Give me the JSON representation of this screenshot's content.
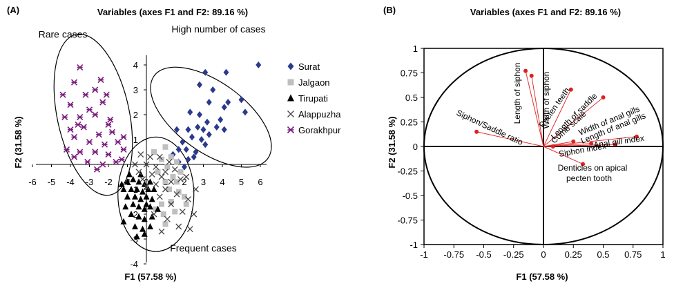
{
  "chart_data": [
    {
      "panel_label": "(A)",
      "type": "scatter",
      "title": "Variables (axes F1 and F2: 89.16 %)",
      "xlabel": "F1 (57.58 %)",
      "ylabel": "F2 (31.58 %)",
      "xlim": [
        -6,
        6
      ],
      "ylim": [
        -4,
        4
      ],
      "xticks": [
        -6,
        -5,
        -4,
        -3,
        -2,
        -1,
        0,
        1,
        2,
        3,
        4,
        5,
        6
      ],
      "yticks": [
        -4,
        -3,
        -2,
        -1,
        1,
        2,
        3,
        4
      ],
      "xtick_labels": [
        "-6",
        "-5",
        "-4",
        "-3",
        "-2",
        "-1",
        "0",
        "1",
        "2",
        "3",
        "4",
        "5",
        "6"
      ],
      "ytick_labels": [
        "-4",
        "-3",
        "-2",
        "-1",
        "1",
        "2",
        "3",
        "4"
      ],
      "legend_position": "right",
      "series": [
        {
          "name": "Surat",
          "marker": "diamond",
          "color": "#2a3a8c",
          "points": [
            [
              5.9,
              4.0
            ],
            [
              4.2,
              3.7
            ],
            [
              3.1,
              3.7
            ],
            [
              5.0,
              2.6
            ],
            [
              3.5,
              3.0
            ],
            [
              4.3,
              2.5
            ],
            [
              2.8,
              3.2
            ],
            [
              3.3,
              2.5
            ],
            [
              5.2,
              2.1
            ],
            [
              4.1,
              2.3
            ],
            [
              2.3,
              2.1
            ],
            [
              2.8,
              2.0
            ],
            [
              3.9,
              1.8
            ],
            [
              3.7,
              1.5
            ],
            [
              3.2,
              1.7
            ],
            [
              2.7,
              1.5
            ],
            [
              2.2,
              1.4
            ],
            [
              1.6,
              1.4
            ],
            [
              3.0,
              1.4
            ],
            [
              3.3,
              1.2
            ],
            [
              4.1,
              1.4
            ],
            [
              2.4,
              1.1
            ],
            [
              2.9,
              1.0
            ],
            [
              1.9,
              0.9
            ],
            [
              3.1,
              0.8
            ],
            [
              2.1,
              0.6
            ],
            [
              2.6,
              0.5
            ],
            [
              1.7,
              0.6
            ],
            [
              2.5,
              0.3
            ],
            [
              1.4,
              0.4
            ],
            [
              1.7,
              0.1
            ],
            [
              2.2,
              0.2
            ],
            [
              2.0,
              -0.1
            ]
          ]
        },
        {
          "name": "Jalgaon",
          "marker": "square",
          "color": "#bfbfbf",
          "points": [
            [
              1.0,
              0.7
            ],
            [
              1.3,
              0.3
            ],
            [
              1.6,
              0.1
            ],
            [
              0.8,
              0.2
            ],
            [
              0.4,
              0.5
            ],
            [
              1.1,
              -0.1
            ],
            [
              1.8,
              -0.3
            ],
            [
              1.4,
              -0.5
            ],
            [
              1.0,
              -0.7
            ],
            [
              0.6,
              -0.3
            ],
            [
              1.2,
              -1.0
            ],
            [
              1.7,
              -1.1
            ],
            [
              2.0,
              -1.3
            ],
            [
              1.3,
              -1.5
            ],
            [
              0.8,
              -1.6
            ],
            [
              1.5,
              -1.9
            ],
            [
              0.9,
              -2.0
            ],
            [
              0.5,
              -1.8
            ],
            [
              2.1,
              -1.6
            ],
            [
              1.0,
              -2.4
            ],
            [
              1.6,
              -0.7
            ]
          ]
        },
        {
          "name": "Tirupati",
          "marker": "triangle",
          "color": "#000000",
          "points": [
            [
              -1.3,
              -0.8
            ],
            [
              -1.0,
              -0.7
            ],
            [
              -0.7,
              -0.6
            ],
            [
              -0.4,
              -0.7
            ],
            [
              -0.1,
              -0.8
            ],
            [
              0.2,
              -0.7
            ],
            [
              -1.2,
              -1.0
            ],
            [
              -0.8,
              -1.0
            ],
            [
              -0.5,
              -1.0
            ],
            [
              -0.2,
              -1.1
            ],
            [
              0.1,
              -1.0
            ],
            [
              0.4,
              -1.0
            ],
            [
              -1.0,
              -1.3
            ],
            [
              -0.6,
              -1.3
            ],
            [
              -0.3,
              -1.4
            ],
            [
              0.0,
              -1.3
            ],
            [
              0.3,
              -1.4
            ],
            [
              -1.1,
              -1.7
            ],
            [
              -0.7,
              -1.6
            ],
            [
              -0.4,
              -1.7
            ],
            [
              -0.1,
              -1.8
            ],
            [
              0.2,
              -1.7
            ],
            [
              -0.8,
              -2.0
            ],
            [
              -0.4,
              -2.1
            ],
            [
              -0.1,
              -2.2
            ],
            [
              0.3,
              -2.1
            ],
            [
              -1.2,
              -2.3
            ],
            [
              -0.6,
              -2.5
            ],
            [
              -0.2,
              -2.6
            ],
            [
              0.2,
              -2.5
            ],
            [
              -0.5,
              -2.9
            ],
            [
              -0.1,
              -2.8
            ],
            [
              -0.9,
              -0.4
            ],
            [
              -0.3,
              -0.4
            ],
            [
              0.0,
              -1.6
            ],
            [
              0.6,
              -1.8
            ]
          ]
        },
        {
          "name": "Alappuzha",
          "marker": "x",
          "color": "#444444",
          "points": [
            [
              -0.3,
              0.4
            ],
            [
              0.2,
              0.3
            ],
            [
              0.7,
              0.3
            ],
            [
              1.2,
              0.1
            ],
            [
              -0.6,
              0.0
            ],
            [
              0.0,
              0.0
            ],
            [
              0.5,
              -0.1
            ],
            [
              1.0,
              -0.3
            ],
            [
              1.5,
              -0.2
            ],
            [
              -0.4,
              -0.3
            ],
            [
              0.3,
              -0.4
            ],
            [
              0.8,
              -0.5
            ],
            [
              1.3,
              -0.7
            ],
            [
              1.8,
              -0.6
            ],
            [
              2.1,
              -0.5
            ],
            [
              -0.2,
              -0.6
            ],
            [
              0.5,
              -0.8
            ],
            [
              1.0,
              -1.0
            ],
            [
              1.6,
              -1.2
            ],
            [
              2.2,
              -1.4
            ],
            [
              2.6,
              -1.0
            ],
            [
              0.7,
              -1.3
            ],
            [
              1.3,
              -1.6
            ],
            [
              1.9,
              -1.9
            ],
            [
              2.5,
              -2.0
            ],
            [
              0.4,
              -2.0
            ],
            [
              1.1,
              -2.2
            ],
            [
              1.7,
              -2.5
            ],
            [
              0.8,
              -2.7
            ],
            [
              2.3,
              -2.6
            ],
            [
              0.0,
              -0.9
            ]
          ]
        },
        {
          "name": "Gorakhpur",
          "marker": "asterisk",
          "color": "#7b1f7e",
          "points": [
            [
              -3.5,
              3.9
            ],
            [
              -3.8,
              3.3
            ],
            [
              -2.4,
              3.4
            ],
            [
              -2.7,
              3.0
            ],
            [
              -4.4,
              2.8
            ],
            [
              -3.2,
              2.8
            ],
            [
              -2.1,
              2.8
            ],
            [
              -4.0,
              2.4
            ],
            [
              -3.0,
              2.2
            ],
            [
              -2.3,
              2.5
            ],
            [
              -4.3,
              1.9
            ],
            [
              -3.5,
              1.9
            ],
            [
              -2.7,
              2.0
            ],
            [
              -1.9,
              1.8
            ],
            [
              -4.0,
              1.4
            ],
            [
              -3.3,
              1.5
            ],
            [
              -2.5,
              1.2
            ],
            [
              -1.8,
              1.3
            ],
            [
              -3.8,
              1.1
            ],
            [
              -3.0,
              0.9
            ],
            [
              -2.2,
              0.8
            ],
            [
              -1.5,
              0.9
            ],
            [
              -4.2,
              0.6
            ],
            [
              -3.5,
              0.5
            ],
            [
              -2.7,
              0.5
            ],
            [
              -2.0,
              0.4
            ],
            [
              -1.2,
              0.6
            ],
            [
              -3.1,
              0.1
            ],
            [
              -2.3,
              0.0
            ],
            [
              -1.6,
              0.1
            ],
            [
              -3.8,
              0.3
            ],
            [
              -2.6,
              -0.2
            ],
            [
              -1.3,
              0.2
            ],
            [
              -2.0,
              1.6
            ],
            [
              -3.6,
              1.6
            ],
            [
              -1.2,
              1.1
            ]
          ]
        }
      ],
      "annotations": [
        {
          "text": "Rare cases",
          "x": -4.4,
          "y": 5.1
        },
        {
          "text": "High number of cases",
          "x": 3.8,
          "y": 5.3
        },
        {
          "text": "Frequent cases",
          "x": 3.0,
          "y": -3.5
        }
      ],
      "ellipses": [
        {
          "cx": -2.8,
          "cy": 2.0,
          "rx": 1.9,
          "ry": 3.3,
          "angle_deg": -12
        },
        {
          "cx": 3.4,
          "cy": 1.9,
          "rx": 3.7,
          "ry": 1.4,
          "angle_deg": 36
        },
        {
          "cx": 0.5,
          "cy": -1.2,
          "rx": 2.0,
          "ry": 2.3,
          "angle_deg": 0
        }
      ]
    },
    {
      "panel_label": "(B)",
      "type": "scatter",
      "title": "Variables (axes F1 and F2: 89.16 %)",
      "xlabel": "F1 (57.58 %)",
      "ylabel": "F2 (31.58 %)",
      "xlim": [
        -1,
        1
      ],
      "ylim": [
        -1,
        1
      ],
      "xticks": [
        -1,
        -0.75,
        -0.5,
        -0.25,
        0,
        0.25,
        0.5,
        0.75,
        1
      ],
      "yticks": [
        -1,
        -0.75,
        -0.5,
        -0.25,
        0,
        0.25,
        0.5,
        0.75,
        1
      ],
      "xtick_labels": [
        "-1",
        "-0.75",
        "-0.5",
        "-0.25",
        "0",
        "0.25",
        "0.5",
        "0.75",
        "1"
      ],
      "ytick_labels": [
        "-1",
        "-0.75",
        "-0.5",
        "-0.25",
        "0",
        "0.25",
        "0.5",
        "0.75",
        "1"
      ],
      "correlation_circle": true,
      "vectors": [
        {
          "name": "Siphon/Saddle ratio",
          "x": -0.56,
          "y": 0.15
        },
        {
          "name": "Length of siphon",
          "x": -0.15,
          "y": 0.77
        },
        {
          "name": "Width of siphon",
          "x": -0.1,
          "y": 0.72
        },
        {
          "name": "Pecten teeth",
          "x": 0.23,
          "y": 0.58
        },
        {
          "name": "Length of saddle",
          "x": 0.5,
          "y": 0.5
        },
        {
          "name": "Comb scale",
          "x": 0.25,
          "y": 0.05
        },
        {
          "name": "Width of anal gills",
          "x": 0.4,
          "y": 0.03
        },
        {
          "name": "Length of anal gills",
          "x": 0.78,
          "y": 0.1
        },
        {
          "name": "Anal gill index",
          "x": 0.6,
          "y": 0.02
        },
        {
          "name": "Siphon index",
          "x": 0.08,
          "y": 0.0
        },
        {
          "name": "Denticles on apical pecten tooth",
          "x": 0.33,
          "y": -0.18
        }
      ]
    }
  ]
}
